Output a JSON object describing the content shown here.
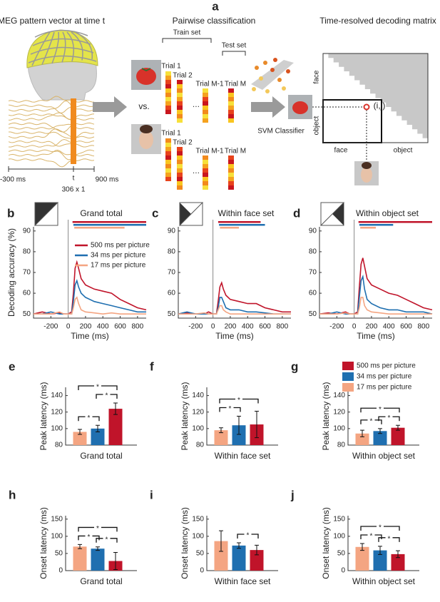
{
  "panel_a": {
    "label": "a",
    "titles": [
      "MEG pattern vector at time t",
      "Pairwise classification",
      "Time-resolved decoding matrix"
    ],
    "train_set": "Train set",
    "test_set": "Test set",
    "trials_top": [
      "Trial 1",
      "Trial 2",
      "Trial M-1",
      "Trial M"
    ],
    "trials_bottom": [
      "Trial 1",
      "Trial 2",
      "Trial M-1",
      "Trial M"
    ],
    "vs": "vs.",
    "classifier": "SVM Classifier",
    "time_axis": [
      "-300 ms",
      "t",
      "900 ms"
    ],
    "vector_size": "306 x 1",
    "matrix": {
      "rows": [
        "face",
        "object"
      ],
      "cols": [
        "face",
        "object"
      ],
      "cell": "(i,j)"
    }
  },
  "chart_data": [
    {
      "type": "line",
      "panel": "b",
      "title": "Grand total",
      "xlabel": "Time (ms)",
      "ylabel": "Decoding accuracy (%)",
      "x": [
        -400,
        -300,
        -200,
        -100,
        -50,
        0,
        40,
        60,
        80,
        100,
        120,
        150,
        200,
        300,
        400,
        500,
        600,
        700,
        800,
        900
      ],
      "series": [
        {
          "name": "500 ms per picture",
          "color": "#c0142a",
          "values": [
            50,
            51,
            50,
            50.5,
            50,
            50,
            51,
            60,
            72,
            75,
            72,
            67,
            64,
            62,
            61,
            60,
            57,
            55,
            53,
            52
          ],
          "significance": [
            50,
            900
          ]
        },
        {
          "name": "34 ms per picture",
          "color": "#1f6fb0",
          "values": [
            50,
            50,
            51,
            50,
            50,
            50,
            50,
            56,
            64,
            66,
            63,
            60,
            58,
            56,
            55,
            54,
            53,
            52,
            51,
            51
          ],
          "significance": [
            60,
            900
          ]
        },
        {
          "name": "17 ms per picture",
          "color": "#f4a582",
          "values": [
            50,
            50,
            50,
            51,
            50,
            50,
            50,
            53,
            57,
            58,
            55,
            52,
            51,
            50.5,
            50,
            50.5,
            50,
            50,
            50,
            50
          ],
          "significance": [
            70,
            650
          ]
        }
      ],
      "xlim": [
        -400,
        900
      ],
      "xticks": [
        -200,
        0,
        200,
        400,
        600,
        800
      ],
      "ylim": [
        48,
        92
      ],
      "yticks": [
        50,
        60,
        70,
        80,
        90
      ],
      "legend": "upper right"
    },
    {
      "type": "line",
      "panel": "c",
      "title": "Within face set",
      "xlabel": "Time (ms)",
      "x": [
        -400,
        -300,
        -200,
        -100,
        -50,
        0,
        40,
        60,
        80,
        100,
        120,
        150,
        200,
        300,
        400,
        500,
        600,
        700,
        800,
        900
      ],
      "series": [
        {
          "color": "#c0142a",
          "values": [
            50,
            50.5,
            50,
            50,
            51,
            50,
            50,
            56,
            63,
            65,
            62,
            59,
            57,
            56,
            55,
            55,
            53,
            52,
            51,
            51
          ],
          "significance": [
            60,
            550
          ]
        },
        {
          "color": "#1f6fb0",
          "values": [
            50,
            51,
            50,
            50,
            50,
            50,
            50,
            53,
            58,
            58,
            56,
            53,
            52,
            52,
            51,
            51,
            50.5,
            50,
            50,
            50
          ],
          "significance": [
            70,
            600
          ]
        },
        {
          "color": "#f4a582",
          "values": [
            50,
            50,
            50,
            50.5,
            50,
            50,
            50,
            52,
            54,
            54,
            52,
            51,
            50,
            50,
            50,
            50,
            50,
            50,
            50,
            50
          ],
          "significance": [
            80,
            300
          ]
        }
      ],
      "xlim": [
        -400,
        900
      ],
      "xticks": [
        -200,
        0,
        200,
        400,
        600,
        800
      ],
      "ylim": [
        48,
        92
      ],
      "yticks": [
        50,
        60,
        70,
        80,
        90
      ]
    },
    {
      "type": "line",
      "panel": "d",
      "title": "Within object set",
      "xlabel": "Time (ms)",
      "x": [
        -400,
        -300,
        -200,
        -100,
        -50,
        0,
        40,
        60,
        80,
        100,
        120,
        150,
        200,
        300,
        400,
        500,
        600,
        700,
        800,
        900
      ],
      "series": [
        {
          "color": "#c0142a",
          "values": [
            50,
            50.5,
            50,
            51,
            50,
            50,
            51,
            63,
            74,
            77,
            73,
            67,
            64,
            62,
            60,
            59,
            57,
            55,
            53,
            52
          ],
          "significance": [
            50,
            900
          ]
        },
        {
          "color": "#1f6fb0",
          "values": [
            50,
            50,
            51,
            50,
            50,
            50,
            50,
            58,
            66,
            68,
            62,
            57,
            55,
            53,
            52,
            52,
            51,
            51,
            51,
            50
          ],
          "significance": [
            60,
            450
          ]
        },
        {
          "color": "#f4a582",
          "values": [
            50,
            50,
            50,
            50.5,
            50,
            50,
            50,
            53,
            58,
            58,
            54,
            52,
            51,
            50.5,
            50,
            50,
            50,
            50,
            50,
            50
          ],
          "significance": [
            70,
            250
          ]
        }
      ],
      "xlim": [
        -400,
        900
      ],
      "xticks": [
        -200,
        0,
        200,
        400,
        600,
        800
      ],
      "ylim": [
        48,
        92
      ],
      "yticks": [
        50,
        60,
        70,
        80,
        90
      ]
    },
    {
      "type": "bar",
      "panel": "e",
      "xlabel": "Grand total",
      "ylabel": "Peak latency (ms)",
      "values": [
        96,
        100,
        124
      ],
      "errors": [
        3,
        4,
        7
      ],
      "colors": [
        "#f4a582",
        "#1f6fb0",
        "#c0142a"
      ],
      "ylim": [
        80,
        150
      ],
      "yticks": [
        80,
        100,
        120,
        140
      ],
      "significance": [
        {
          "pair": [
            0,
            1
          ],
          "label": "*"
        },
        {
          "pair": [
            1,
            2
          ],
          "label": "*"
        },
        {
          "pair": [
            0,
            2
          ],
          "label": "*"
        }
      ]
    },
    {
      "type": "bar",
      "panel": "f",
      "xlabel": "Within face set",
      "ylabel": "Peak latency (ms)",
      "values": [
        98,
        104,
        105
      ],
      "errors": [
        3,
        11,
        16
      ],
      "colors": [
        "#f4a582",
        "#1f6fb0",
        "#c0142a"
      ],
      "ylim": [
        80,
        150
      ],
      "yticks": [
        80,
        100,
        120,
        140
      ],
      "significance": [
        {
          "pair": [
            0,
            1
          ],
          "label": "*"
        },
        {
          "pair": [
            0,
            2
          ],
          "label": "*"
        }
      ]
    },
    {
      "type": "bar",
      "panel": "g",
      "xlabel": "Within object set",
      "ylabel": "Peak latency (ms)",
      "values": [
        94,
        97,
        101
      ],
      "errors": [
        4,
        3,
        3
      ],
      "colors": [
        "#f4a582",
        "#1f6fb0",
        "#c0142a"
      ],
      "ylim": [
        80,
        150
      ],
      "yticks": [
        80,
        100,
        120,
        140
      ],
      "significance": [
        {
          "pair": [
            0,
            1
          ],
          "label": "*"
        },
        {
          "pair": [
            1,
            2
          ],
          "label": "*"
        },
        {
          "pair": [
            0,
            2
          ],
          "label": "*"
        }
      ],
      "legend": [
        {
          "name": "500 ms per picture",
          "color": "#c0142a"
        },
        {
          "name": "34 ms per picture",
          "color": "#1f6fb0"
        },
        {
          "name": "17 ms per picture",
          "color": "#f4a582"
        }
      ]
    },
    {
      "type": "bar",
      "panel": "h",
      "xlabel": "Grand total",
      "ylabel": "Onset latency (ms)",
      "values": [
        70,
        64,
        28
      ],
      "errors": [
        6,
        5,
        25
      ],
      "colors": [
        "#f4a582",
        "#1f6fb0",
        "#c0142a"
      ],
      "ylim": [
        0,
        160
      ],
      "yticks": [
        0,
        50,
        100,
        150
      ],
      "significance": [
        {
          "pair": [
            0,
            1
          ],
          "label": "*"
        },
        {
          "pair": [
            1,
            2
          ],
          "label": "*"
        },
        {
          "pair": [
            0,
            2
          ],
          "label": "*"
        }
      ]
    },
    {
      "type": "bar",
      "panel": "i",
      "xlabel": "Within face set",
      "ylabel": "Onset latency (ms)",
      "values": [
        86,
        73,
        60
      ],
      "errors": [
        30,
        8,
        14
      ],
      "colors": [
        "#f4a582",
        "#1f6fb0",
        "#c0142a"
      ],
      "ylim": [
        0,
        160
      ],
      "yticks": [
        0,
        50,
        100,
        150
      ],
      "significance": [
        {
          "pair": [
            1,
            2
          ],
          "label": "*"
        }
      ]
    },
    {
      "type": "bar",
      "panel": "j",
      "xlabel": "Within object set",
      "ylabel": "Onset latency (ms)",
      "values": [
        69,
        59,
        48
      ],
      "errors": [
        10,
        12,
        10
      ],
      "colors": [
        "#f4a582",
        "#1f6fb0",
        "#c0142a"
      ],
      "ylim": [
        0,
        160
      ],
      "yticks": [
        0,
        50,
        100,
        150
      ],
      "significance": [
        {
          "pair": [
            0,
            1
          ],
          "label": "*"
        },
        {
          "pair": [
            1,
            2
          ],
          "label": "*"
        },
        {
          "pair": [
            0,
            2
          ],
          "label": "*"
        }
      ]
    }
  ]
}
